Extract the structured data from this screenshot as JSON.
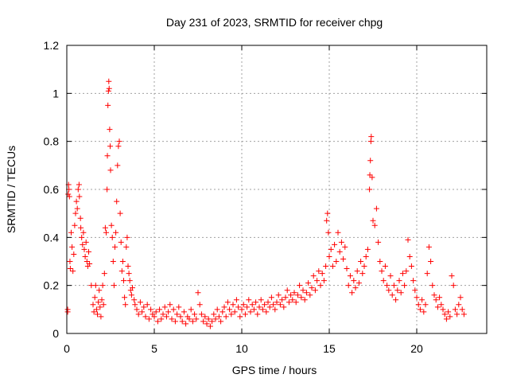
{
  "chart_data": {
    "type": "scatter",
    "title": "Day 231 of 2023, SRMTID for receiver chpg",
    "xlabel": "GPS time / hours",
    "ylabel": "SRMTID / TECUs",
    "xlim": [
      0,
      24
    ],
    "ylim": [
      0,
      1.2
    ],
    "xticks": [
      0,
      5,
      10,
      15,
      20
    ],
    "xtick_labels": [
      "0",
      "5",
      "10",
      "15",
      "20"
    ],
    "yticks": [
      0,
      0.2,
      0.4,
      0.6,
      0.8,
      1.0,
      1.2
    ],
    "ytick_labels": [
      "0",
      "0.2",
      "0.4",
      "0.6",
      "0.8",
      "1",
      "1.2"
    ],
    "grid": true,
    "marker": "+",
    "color": "#ff0000",
    "series": [
      {
        "name": "SRMTID",
        "points": [
          [
            0.05,
            0.09
          ],
          [
            0.05,
            0.1
          ],
          [
            0.08,
            0.58
          ],
          [
            0.1,
            0.62
          ],
          [
            0.12,
            0.6
          ],
          [
            0.15,
            0.57
          ],
          [
            0.18,
            0.3
          ],
          [
            0.2,
            0.27
          ],
          [
            0.25,
            0.42
          ],
          [
            0.3,
            0.36
          ],
          [
            0.35,
            0.26
          ],
          [
            0.4,
            0.33
          ],
          [
            0.45,
            0.45
          ],
          [
            0.5,
            0.5
          ],
          [
            0.55,
            0.55
          ],
          [
            0.6,
            0.52
          ],
          [
            0.65,
            0.6
          ],
          [
            0.7,
            0.62
          ],
          [
            0.72,
            0.57
          ],
          [
            0.78,
            0.48
          ],
          [
            0.8,
            0.44
          ],
          [
            0.85,
            0.4
          ],
          [
            0.9,
            0.37
          ],
          [
            0.95,
            0.42
          ],
          [
            1.0,
            0.35
          ],
          [
            1.05,
            0.32
          ],
          [
            1.1,
            0.38
          ],
          [
            1.15,
            0.3
          ],
          [
            1.2,
            0.28
          ],
          [
            1.25,
            0.34
          ],
          [
            1.3,
            0.29
          ],
          [
            1.4,
            0.2
          ],
          [
            1.5,
            0.12
          ],
          [
            1.55,
            0.09
          ],
          [
            1.6,
            0.15
          ],
          [
            1.65,
            0.2
          ],
          [
            1.7,
            0.1
          ],
          [
            1.75,
            0.08
          ],
          [
            1.8,
            0.13
          ],
          [
            1.85,
            0.18
          ],
          [
            1.9,
            0.11
          ],
          [
            1.95,
            0.07
          ],
          [
            2.0,
            0.14
          ],
          [
            2.05,
            0.2
          ],
          [
            2.1,
            0.12
          ],
          [
            2.15,
            0.25
          ],
          [
            2.2,
            0.44
          ],
          [
            2.25,
            0.42
          ],
          [
            2.3,
            0.6
          ],
          [
            2.32,
            0.74
          ],
          [
            2.35,
            0.95
          ],
          [
            2.38,
            1.01
          ],
          [
            2.4,
            1.05
          ],
          [
            2.42,
            1.02
          ],
          [
            2.45,
            0.85
          ],
          [
            2.48,
            0.78
          ],
          [
            2.5,
            0.68
          ],
          [
            2.55,
            0.45
          ],
          [
            2.6,
            0.4
          ],
          [
            2.65,
            0.3
          ],
          [
            2.7,
            0.2
          ],
          [
            2.75,
            0.36
          ],
          [
            2.8,
            0.42
          ],
          [
            2.85,
            0.55
          ],
          [
            2.9,
            0.7
          ],
          [
            2.95,
            0.78
          ],
          [
            3.0,
            0.8
          ],
          [
            3.05,
            0.5
          ],
          [
            3.1,
            0.38
          ],
          [
            3.15,
            0.26
          ],
          [
            3.2,
            0.3
          ],
          [
            3.25,
            0.22
          ],
          [
            3.3,
            0.15
          ],
          [
            3.35,
            0.12
          ],
          [
            3.4,
            0.36
          ],
          [
            3.45,
            0.4
          ],
          [
            3.5,
            0.28
          ],
          [
            3.55,
            0.25
          ],
          [
            3.6,
            0.22
          ],
          [
            3.65,
            0.18
          ],
          [
            3.7,
            0.16
          ],
          [
            3.75,
            0.19
          ],
          [
            3.85,
            0.14
          ],
          [
            3.9,
            0.12
          ],
          [
            4.0,
            0.1
          ],
          [
            4.1,
            0.08
          ],
          [
            4.2,
            0.13
          ],
          [
            4.3,
            0.09
          ],
          [
            4.4,
            0.11
          ],
          [
            4.5,
            0.07
          ],
          [
            4.6,
            0.12
          ],
          [
            4.7,
            0.06
          ],
          [
            4.8,
            0.1
          ],
          [
            4.9,
            0.08
          ],
          [
            5.0,
            0.07
          ],
          [
            5.1,
            0.09
          ],
          [
            5.2,
            0.05
          ],
          [
            5.3,
            0.1
          ],
          [
            5.4,
            0.06
          ],
          [
            5.5,
            0.08
          ],
          [
            5.6,
            0.11
          ],
          [
            5.7,
            0.07
          ],
          [
            5.8,
            0.09
          ],
          [
            5.9,
            0.12
          ],
          [
            6.0,
            0.06
          ],
          [
            6.1,
            0.1
          ],
          [
            6.2,
            0.05
          ],
          [
            6.3,
            0.08
          ],
          [
            6.4,
            0.11
          ],
          [
            6.5,
            0.07
          ],
          [
            6.6,
            0.05
          ],
          [
            6.7,
            0.09
          ],
          [
            6.8,
            0.04
          ],
          [
            6.9,
            0.07
          ],
          [
            7.0,
            0.06
          ],
          [
            7.1,
            0.1
          ],
          [
            7.2,
            0.05
          ],
          [
            7.3,
            0.08
          ],
          [
            7.4,
            0.06
          ],
          [
            7.5,
            0.17
          ],
          [
            7.6,
            0.12
          ],
          [
            7.7,
            0.08
          ],
          [
            7.8,
            0.05
          ],
          [
            7.9,
            0.07
          ],
          [
            8.0,
            0.04
          ],
          [
            8.1,
            0.06
          ],
          [
            8.2,
            0.03
          ],
          [
            8.3,
            0.05
          ],
          [
            8.4,
            0.08
          ],
          [
            8.5,
            0.06
          ],
          [
            8.6,
            0.1
          ],
          [
            8.7,
            0.07
          ],
          [
            8.8,
            0.05
          ],
          [
            8.9,
            0.09
          ],
          [
            9.0,
            0.11
          ],
          [
            9.1,
            0.07
          ],
          [
            9.2,
            0.13
          ],
          [
            9.3,
            0.1
          ],
          [
            9.4,
            0.08
          ],
          [
            9.5,
            0.12
          ],
          [
            9.6,
            0.09
          ],
          [
            9.7,
            0.14
          ],
          [
            9.8,
            0.11
          ],
          [
            9.9,
            0.07
          ],
          [
            10.0,
            0.1
          ],
          [
            10.1,
            0.12
          ],
          [
            10.2,
            0.08
          ],
          [
            10.3,
            0.11
          ],
          [
            10.4,
            0.14
          ],
          [
            10.5,
            0.09
          ],
          [
            10.6,
            0.12
          ],
          [
            10.7,
            0.1
          ],
          [
            10.8,
            0.13
          ],
          [
            10.9,
            0.08
          ],
          [
            11.0,
            0.11
          ],
          [
            11.1,
            0.14
          ],
          [
            11.2,
            0.1
          ],
          [
            11.3,
            0.12
          ],
          [
            11.4,
            0.09
          ],
          [
            11.5,
            0.13
          ],
          [
            11.6,
            0.11
          ],
          [
            11.7,
            0.15
          ],
          [
            11.8,
            0.12
          ],
          [
            11.9,
            0.1
          ],
          [
            12.0,
            0.13
          ],
          [
            12.1,
            0.16
          ],
          [
            12.2,
            0.12
          ],
          [
            12.3,
            0.14
          ],
          [
            12.4,
            0.11
          ],
          [
            12.5,
            0.15
          ],
          [
            12.6,
            0.18
          ],
          [
            12.7,
            0.13
          ],
          [
            12.8,
            0.16
          ],
          [
            12.9,
            0.14
          ],
          [
            13.0,
            0.17
          ],
          [
            13.1,
            0.13
          ],
          [
            13.2,
            0.16
          ],
          [
            13.3,
            0.2
          ],
          [
            13.4,
            0.15
          ],
          [
            13.5,
            0.18
          ],
          [
            13.6,
            0.14
          ],
          [
            13.7,
            0.17
          ],
          [
            13.8,
            0.21
          ],
          [
            13.9,
            0.16
          ],
          [
            14.0,
            0.19
          ],
          [
            14.1,
            0.24
          ],
          [
            14.2,
            0.18
          ],
          [
            14.3,
            0.22
          ],
          [
            14.4,
            0.26
          ],
          [
            14.5,
            0.2
          ],
          [
            14.6,
            0.25
          ],
          [
            14.7,
            0.22
          ],
          [
            14.8,
            0.28
          ],
          [
            14.85,
            0.47
          ],
          [
            14.9,
            0.5
          ],
          [
            14.95,
            0.42
          ],
          [
            15.0,
            0.32
          ],
          [
            15.1,
            0.35
          ],
          [
            15.2,
            0.28
          ],
          [
            15.3,
            0.37
          ],
          [
            15.4,
            0.3
          ],
          [
            15.5,
            0.42
          ],
          [
            15.6,
            0.34
          ],
          [
            15.7,
            0.38
          ],
          [
            15.8,
            0.31
          ],
          [
            15.9,
            0.36
          ],
          [
            16.0,
            0.27
          ],
          [
            16.1,
            0.2
          ],
          [
            16.2,
            0.24
          ],
          [
            16.3,
            0.17
          ],
          [
            16.4,
            0.22
          ],
          [
            16.5,
            0.19
          ],
          [
            16.6,
            0.26
          ],
          [
            16.7,
            0.21
          ],
          [
            16.8,
            0.3
          ],
          [
            16.9,
            0.25
          ],
          [
            17.0,
            0.28
          ],
          [
            17.1,
            0.32
          ],
          [
            17.2,
            0.35
          ],
          [
            17.3,
            0.6
          ],
          [
            17.32,
            0.66
          ],
          [
            17.35,
            0.72
          ],
          [
            17.38,
            0.8
          ],
          [
            17.4,
            0.82
          ],
          [
            17.45,
            0.65
          ],
          [
            17.5,
            0.47
          ],
          [
            17.6,
            0.45
          ],
          [
            17.7,
            0.52
          ],
          [
            17.8,
            0.38
          ],
          [
            17.9,
            0.3
          ],
          [
            18.0,
            0.26
          ],
          [
            18.1,
            0.22
          ],
          [
            18.2,
            0.28
          ],
          [
            18.3,
            0.2
          ],
          [
            18.4,
            0.18
          ],
          [
            18.5,
            0.24
          ],
          [
            18.6,
            0.16
          ],
          [
            18.7,
            0.2
          ],
          [
            18.8,
            0.14
          ],
          [
            18.9,
            0.18
          ],
          [
            19.0,
            0.22
          ],
          [
            19.1,
            0.17
          ],
          [
            19.2,
            0.25
          ],
          [
            19.3,
            0.2
          ],
          [
            19.4,
            0.26
          ],
          [
            19.5,
            0.39
          ],
          [
            19.6,
            0.32
          ],
          [
            19.7,
            0.28
          ],
          [
            19.8,
            0.22
          ],
          [
            19.9,
            0.18
          ],
          [
            20.0,
            0.15
          ],
          [
            20.1,
            0.12
          ],
          [
            20.2,
            0.1
          ],
          [
            20.3,
            0.14
          ],
          [
            20.4,
            0.09
          ],
          [
            20.5,
            0.12
          ],
          [
            20.6,
            0.25
          ],
          [
            20.7,
            0.36
          ],
          [
            20.8,
            0.3
          ],
          [
            20.9,
            0.2
          ],
          [
            21.0,
            0.16
          ],
          [
            21.1,
            0.14
          ],
          [
            21.2,
            0.11
          ],
          [
            21.3,
            0.15
          ],
          [
            21.4,
            0.12
          ],
          [
            21.5,
            0.1
          ],
          [
            21.6,
            0.08
          ],
          [
            21.7,
            0.06
          ],
          [
            21.8,
            0.09
          ],
          [
            21.9,
            0.07
          ],
          [
            22.0,
            0.24
          ],
          [
            22.1,
            0.2
          ],
          [
            22.2,
            0.1
          ],
          [
            22.3,
            0.08
          ],
          [
            22.4,
            0.12
          ],
          [
            22.5,
            0.15
          ],
          [
            22.6,
            0.1
          ],
          [
            22.7,
            0.08
          ]
        ]
      }
    ]
  }
}
